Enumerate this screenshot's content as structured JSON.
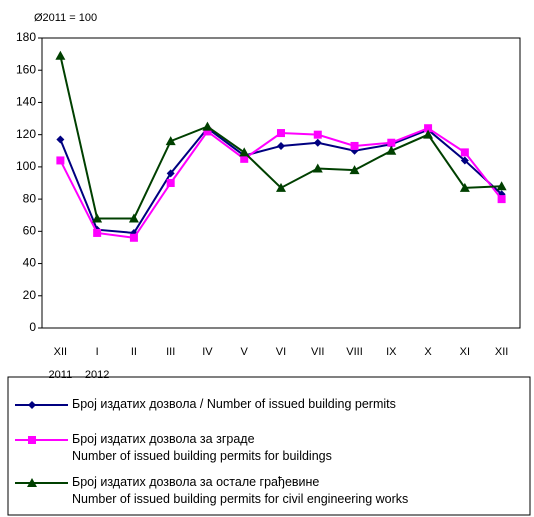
{
  "chart_data": {
    "type": "line",
    "annotation": "Ø2011 = 100",
    "categories": [
      "XII",
      "I",
      "II",
      "III",
      "IV",
      "V",
      "VI",
      "VII",
      "VIII",
      "IX",
      "X",
      "XI",
      "XII"
    ],
    "sub_labels": [
      "2011",
      "2012",
      null,
      null,
      null,
      null,
      null,
      null,
      null,
      null,
      null,
      null,
      null
    ],
    "series": [
      {
        "name": "Број издатих дозвола / Number  of  issued building permits",
        "color": "#000080",
        "marker": "diamond",
        "values": [
          117,
          61,
          59,
          96,
          124,
          107,
          113,
          115,
          110,
          114,
          123,
          104,
          83
        ]
      },
      {
        "name": "Број издатих дозвола за зграде\nNumber  of  issued building permits for buildings",
        "color": "#ff00ff",
        "marker": "square",
        "values": [
          104,
          59,
          56,
          90,
          122,
          105,
          121,
          120,
          113,
          115,
          124,
          109,
          80
        ]
      },
      {
        "name": "Број издатих дозвола за остале грађевине\nNumber  of  issued building permits for civil engineering works",
        "color": "#004000",
        "marker": "triangle",
        "values": [
          169,
          68,
          68,
          116,
          125,
          109,
          87,
          99,
          98,
          110,
          120,
          87,
          88
        ]
      }
    ],
    "ylim": [
      0,
      180
    ],
    "yticks": [
      0,
      20,
      40,
      60,
      80,
      100,
      120,
      140,
      160,
      180
    ],
    "grid": false
  }
}
